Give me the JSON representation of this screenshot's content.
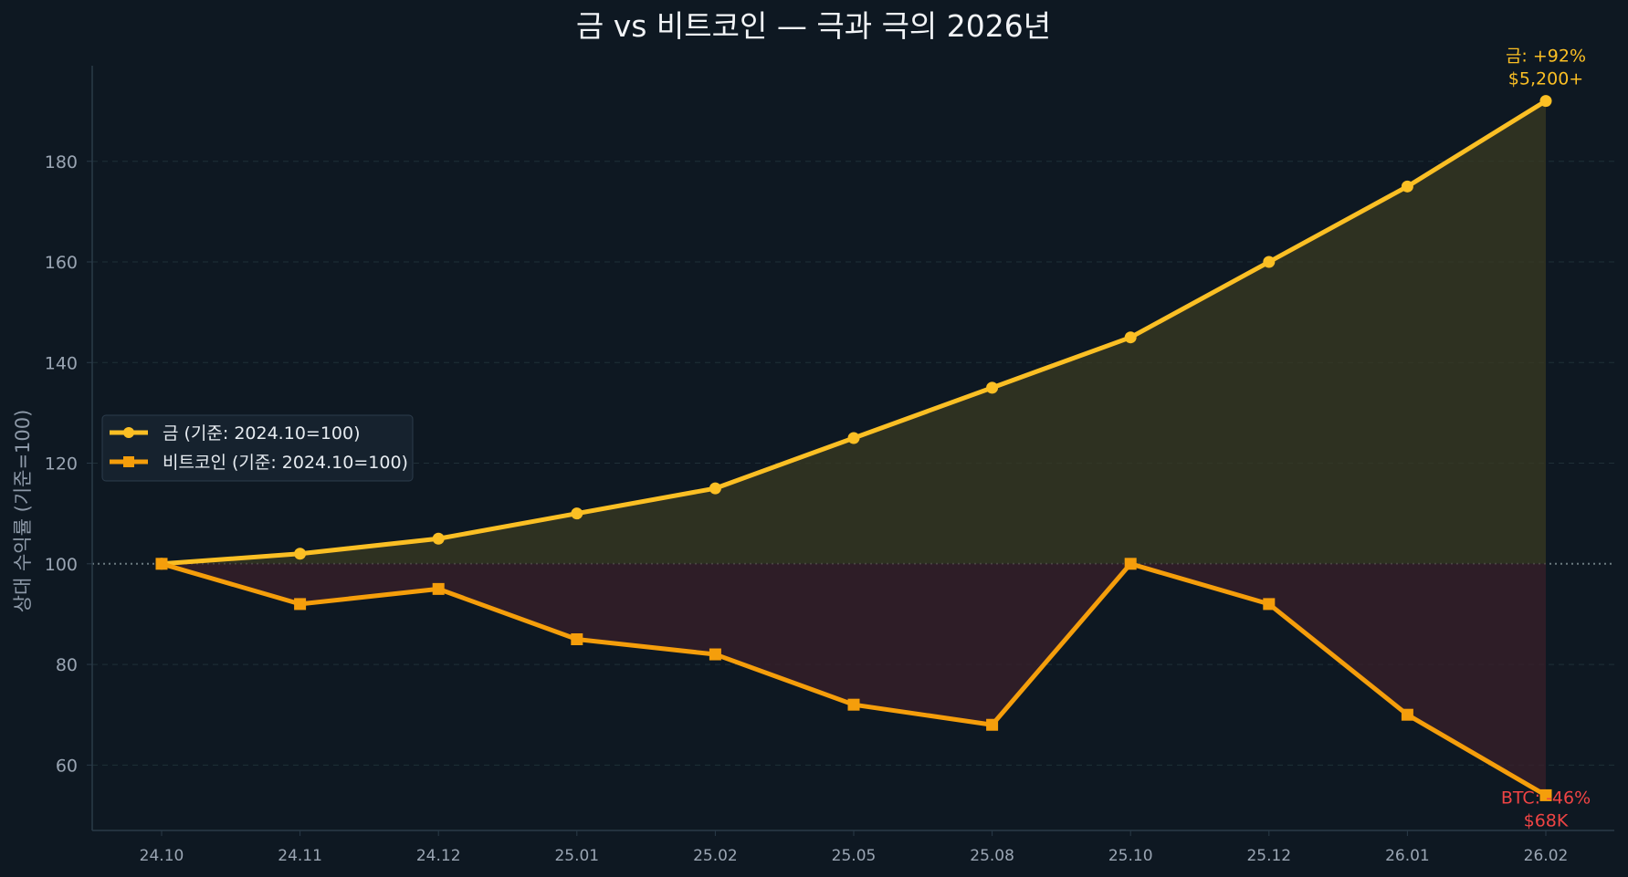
{
  "chart_data": {
    "type": "line",
    "title": "금 vs 비트코인 — 극과 극의 2026년",
    "xlabel": "",
    "ylabel": "상대 수익률 (기준=100)",
    "categories": [
      "24.10",
      "24.11",
      "24.12",
      "25.01",
      "25.02",
      "25.05",
      "25.08",
      "25.10",
      "25.12",
      "26.01",
      "26.02"
    ],
    "yticks": [
      60,
      80,
      100,
      120,
      140,
      160,
      180
    ],
    "ylim": [
      47,
      199
    ],
    "baseline": 100,
    "grid": "y-dashed",
    "legend_position": "center-left",
    "series": [
      {
        "name": "금 (기준: 2024.10=100)",
        "marker": "circle",
        "color": "#fbbf24",
        "fill_color": "#3a3a22",
        "values": [
          100,
          102,
          105,
          110,
          115,
          125,
          135,
          145,
          160,
          175,
          192
        ]
      },
      {
        "name": "비트코인 (기준: 2024.10=100)",
        "marker": "square",
        "color": "#f59e0b",
        "fill_color": "#3a1f2a",
        "values": [
          100,
          92,
          95,
          85,
          82,
          72,
          68,
          100,
          92,
          70,
          54
        ]
      }
    ],
    "annotations": [
      {
        "series": 0,
        "point": 10,
        "lines": [
          "금: +92%",
          "$5,200+"
        ],
        "color": "#fbbf24",
        "placement": "above"
      },
      {
        "series": 1,
        "point": 10,
        "lines": [
          "BTC: -46%",
          "$68K"
        ],
        "color": "#ef4444",
        "placement": "below"
      }
    ]
  },
  "colors": {
    "background": "#0e1822",
    "grid": "#1f3038",
    "axis": "#2a3a48",
    "baseline": "#6b7a80",
    "legend_bg": "#16222e",
    "legend_border": "#2c3c4c"
  }
}
